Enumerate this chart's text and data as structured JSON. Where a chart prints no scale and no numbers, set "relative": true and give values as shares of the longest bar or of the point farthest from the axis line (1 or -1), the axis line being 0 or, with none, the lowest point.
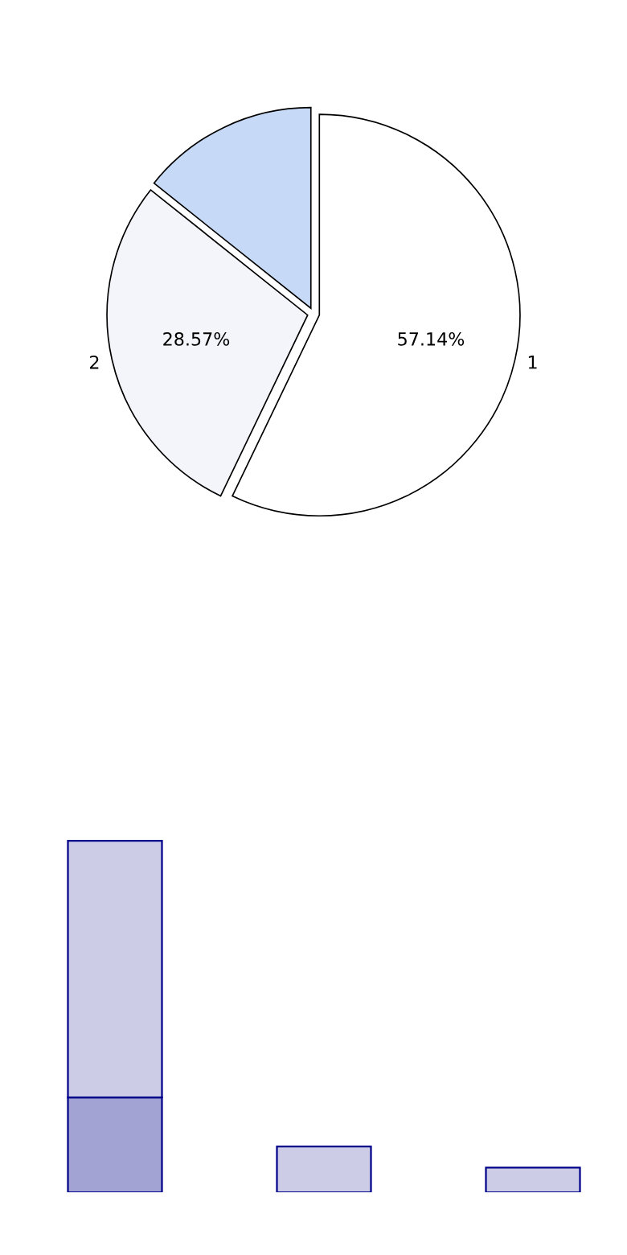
{
  "chart_data": [
    {
      "type": "pie",
      "categories": [
        "1",
        "2",
        null
      ],
      "values": [
        57.14,
        28.57,
        14.29
      ],
      "colors": [
        "#ffffff",
        "#f4f4fb",
        "#c6d9f7"
      ],
      "value_labels": [
        "57.14%",
        "28.57%",
        null
      ]
    },
    {
      "type": "bar",
      "relative": true,
      "stacked": true,
      "categories": [
        null,
        null,
        null
      ],
      "series": [
        {
          "color": "#a3a3d3",
          "values": [
            0.27,
            null,
            null
          ]
        },
        {
          "color": "#cccce6",
          "values": [
            0.73,
            0.13,
            0.07
          ]
        }
      ]
    }
  ]
}
